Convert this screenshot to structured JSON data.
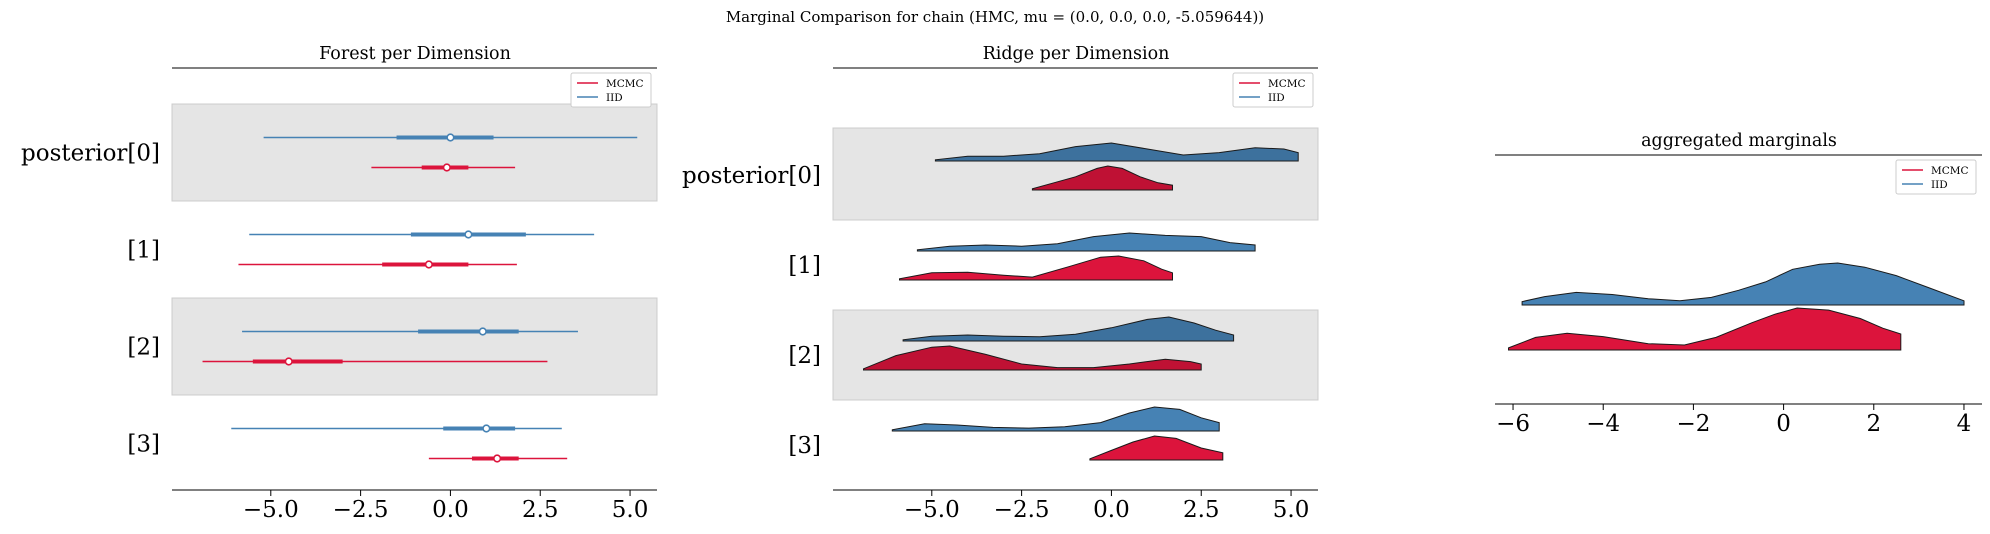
{
  "suptitle": "Marginal Comparison for chain (HMC, mu = (0.0, 0.0, 0.0, -5.059644))",
  "legend": {
    "mcmc_label": "MCMC",
    "iid_label": "IID"
  },
  "colors": {
    "mcmc": "#dc143c",
    "iid": "#4682b4",
    "band": "#e5e5e5"
  },
  "chart_data": [
    {
      "type": "forest",
      "title": "Forest per Dimension",
      "xlim": [
        -7.75,
        5.75
      ],
      "xticks": [
        -5.0,
        -2.5,
        0.0,
        2.5,
        5.0
      ],
      "xtick_labels": [
        "−5.0",
        "−2.5",
        "0.0",
        "2.5",
        "5.0"
      ],
      "categories": [
        "posterior[0]",
        "[1]",
        "[2]",
        "[3]"
      ],
      "legend_position": "top-right",
      "series": [
        {
          "name": "MCMC",
          "rows": [
            {
              "lo": -2.2,
              "q1": -0.8,
              "mid": -0.1,
              "q3": 0.5,
              "hi": 1.8
            },
            {
              "lo": -5.9,
              "q1": -1.9,
              "mid": -0.6,
              "q3": 0.5,
              "hi": 1.85
            },
            {
              "lo": -6.9,
              "q1": -5.5,
              "mid": -4.5,
              "q3": -3.0,
              "hi": 2.7
            },
            {
              "lo": -0.6,
              "q1": 0.6,
              "mid": 1.3,
              "q3": 1.9,
              "hi": 3.25
            }
          ]
        },
        {
          "name": "IID",
          "rows": [
            {
              "lo": -5.2,
              "q1": -1.5,
              "mid": 0.0,
              "q3": 1.2,
              "hi": 5.2
            },
            {
              "lo": -5.6,
              "q1": -1.1,
              "mid": 0.5,
              "q3": 2.1,
              "hi": 4.0
            },
            {
              "lo": -5.8,
              "q1": -0.9,
              "mid": 0.9,
              "q3": 1.9,
              "hi": 3.55
            },
            {
              "lo": -6.1,
              "q1": -0.2,
              "mid": 1.0,
              "q3": 1.8,
              "hi": 3.1
            }
          ]
        }
      ]
    },
    {
      "type": "ridge",
      "title": "Ridge per Dimension",
      "xlim": [
        -7.75,
        5.75
      ],
      "xticks": [
        -5.0,
        -2.5,
        0.0,
        2.5,
        5.0
      ],
      "xtick_labels": [
        "−5.0",
        "−2.5",
        "0.0",
        "2.5",
        "5.0"
      ],
      "categories": [
        "posterior[0]",
        "[1]",
        "[2]",
        "[3]"
      ],
      "legend_position": "top-right",
      "series": [
        {
          "name": "MCMC",
          "rows": [
            {
              "range": [
                -2.2,
                1.7
              ],
              "points": [
                [
                  -2.2,
                  0.05
                ],
                [
                  -1.6,
                  0.3
                ],
                [
                  -1.0,
                  0.55
                ],
                [
                  -0.4,
                  0.9
                ],
                [
                  -0.1,
                  1.0
                ],
                [
                  0.3,
                  0.9
                ],
                [
                  0.8,
                  0.55
                ],
                [
                  1.3,
                  0.3
                ],
                [
                  1.7,
                  0.2
                ]
              ]
            },
            {
              "range": [
                -5.9,
                1.7
              ],
              "points": [
                [
                  -5.9,
                  0.05
                ],
                [
                  -5.0,
                  0.3
                ],
                [
                  -4.0,
                  0.32
                ],
                [
                  -3.0,
                  0.2
                ],
                [
                  -2.2,
                  0.12
                ],
                [
                  -1.2,
                  0.55
                ],
                [
                  -0.3,
                  0.95
                ],
                [
                  0.2,
                  1.0
                ],
                [
                  0.9,
                  0.8
                ],
                [
                  1.4,
                  0.45
                ],
                [
                  1.7,
                  0.3
                ]
              ]
            },
            {
              "range": [
                -6.9,
                2.5
              ],
              "points": [
                [
                  -6.9,
                  0.05
                ],
                [
                  -6.0,
                  0.6
                ],
                [
                  -5.0,
                  0.95
                ],
                [
                  -4.5,
                  1.0
                ],
                [
                  -3.5,
                  0.65
                ],
                [
                  -2.5,
                  0.25
                ],
                [
                  -1.5,
                  0.1
                ],
                [
                  -0.5,
                  0.1
                ],
                [
                  0.5,
                  0.25
                ],
                [
                  1.5,
                  0.45
                ],
                [
                  2.2,
                  0.35
                ],
                [
                  2.5,
                  0.25
                ]
              ]
            },
            {
              "range": [
                -0.6,
                3.1
              ],
              "points": [
                [
                  -0.6,
                  0.05
                ],
                [
                  0.0,
                  0.4
                ],
                [
                  0.6,
                  0.75
                ],
                [
                  1.2,
                  1.0
                ],
                [
                  1.8,
                  0.9
                ],
                [
                  2.5,
                  0.5
                ],
                [
                  3.1,
                  0.3
                ]
              ]
            }
          ]
        },
        {
          "name": "IID",
          "rows": [
            {
              "range": [
                -4.9,
                5.2
              ],
              "points": [
                [
                  -4.9,
                  0.05
                ],
                [
                  -4.0,
                  0.2
                ],
                [
                  -3.0,
                  0.2
                ],
                [
                  -2.0,
                  0.3
                ],
                [
                  -1.0,
                  0.6
                ],
                [
                  0.0,
                  0.75
                ],
                [
                  1.0,
                  0.5
                ],
                [
                  2.0,
                  0.25
                ],
                [
                  3.0,
                  0.35
                ],
                [
                  4.0,
                  0.55
                ],
                [
                  4.8,
                  0.5
                ],
                [
                  5.2,
                  0.35
                ]
              ]
            },
            {
              "range": [
                -5.4,
                4.0
              ],
              "points": [
                [
                  -5.4,
                  0.05
                ],
                [
                  -4.5,
                  0.2
                ],
                [
                  -3.5,
                  0.25
                ],
                [
                  -2.5,
                  0.2
                ],
                [
                  -1.5,
                  0.3
                ],
                [
                  -0.5,
                  0.6
                ],
                [
                  0.5,
                  0.75
                ],
                [
                  1.5,
                  0.65
                ],
                [
                  2.5,
                  0.6
                ],
                [
                  3.3,
                  0.35
                ],
                [
                  4.0,
                  0.25
                ]
              ]
            },
            {
              "range": [
                -5.8,
                3.4
              ],
              "points": [
                [
                  -5.8,
                  0.05
                ],
                [
                  -5.0,
                  0.2
                ],
                [
                  -4.0,
                  0.25
                ],
                [
                  -3.0,
                  0.2
                ],
                [
                  -2.0,
                  0.18
                ],
                [
                  -1.0,
                  0.28
                ],
                [
                  0.0,
                  0.55
                ],
                [
                  1.0,
                  0.9
                ],
                [
                  1.6,
                  1.0
                ],
                [
                  2.3,
                  0.75
                ],
                [
                  2.9,
                  0.45
                ],
                [
                  3.4,
                  0.25
                ]
              ]
            },
            {
              "range": [
                -6.1,
                3.0
              ],
              "points": [
                [
                  -6.1,
                  0.05
                ],
                [
                  -5.2,
                  0.3
                ],
                [
                  -4.3,
                  0.25
                ],
                [
                  -3.3,
                  0.15
                ],
                [
                  -2.3,
                  0.12
                ],
                [
                  -1.3,
                  0.18
                ],
                [
                  -0.3,
                  0.35
                ],
                [
                  0.5,
                  0.75
                ],
                [
                  1.2,
                  1.0
                ],
                [
                  1.9,
                  0.9
                ],
                [
                  2.5,
                  0.55
                ],
                [
                  3.0,
                  0.35
                ]
              ]
            }
          ]
        }
      ]
    },
    {
      "type": "ridge",
      "title": "aggregated marginals",
      "xlim": [
        -6.4,
        4.4
      ],
      "xticks": [
        -6,
        -4,
        -2,
        0,
        2,
        4
      ],
      "xtick_labels": [
        "−6",
        "−4",
        "−2",
        "0",
        "2",
        "4"
      ],
      "legend_position": "top-right",
      "series": [
        {
          "name": "IID",
          "range": [
            -5.8,
            4.0
          ],
          "points": [
            [
              -5.8,
              0.08
            ],
            [
              -5.3,
              0.2
            ],
            [
              -4.6,
              0.3
            ],
            [
              -3.8,
              0.25
            ],
            [
              -3.0,
              0.15
            ],
            [
              -2.3,
              0.1
            ],
            [
              -1.6,
              0.18
            ],
            [
              -1.0,
              0.35
            ],
            [
              -0.4,
              0.55
            ],
            [
              0.2,
              0.85
            ],
            [
              0.8,
              0.97
            ],
            [
              1.2,
              1.0
            ],
            [
              1.8,
              0.9
            ],
            [
              2.5,
              0.7
            ],
            [
              3.2,
              0.42
            ],
            [
              4.0,
              0.1
            ]
          ]
        },
        {
          "name": "MCMC",
          "range": [
            -6.1,
            2.6
          ],
          "points": [
            [
              -6.1,
              0.05
            ],
            [
              -5.5,
              0.3
            ],
            [
              -4.8,
              0.4
            ],
            [
              -4.0,
              0.32
            ],
            [
              -3.0,
              0.15
            ],
            [
              -2.2,
              0.12
            ],
            [
              -1.5,
              0.3
            ],
            [
              -0.7,
              0.65
            ],
            [
              -0.2,
              0.85
            ],
            [
              0.3,
              1.0
            ],
            [
              1.0,
              0.95
            ],
            [
              1.7,
              0.75
            ],
            [
              2.2,
              0.52
            ],
            [
              2.6,
              0.38
            ]
          ]
        }
      ]
    }
  ]
}
